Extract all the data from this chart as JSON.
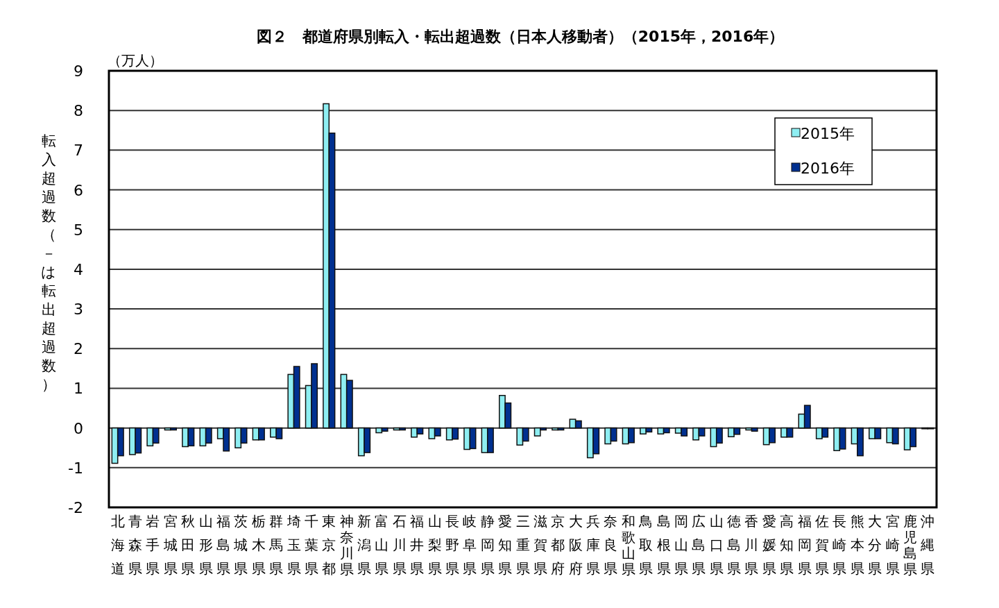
{
  "chart_data": {
    "type": "bar",
    "title": "図２　都道府県別転入・転出超過数（日本人移動者）（2015年，2016年）",
    "ylabel": "転入超過数（－は転出超過数）",
    "annotations": [
      "（万人）"
    ],
    "categories": [
      "北海道",
      "青森県",
      "岩手県",
      "宮城県",
      "秋田県",
      "山形県",
      "福島県",
      "茨城県",
      "栃木県",
      "群馬県",
      "埼玉県",
      "千葉県",
      "東京都",
      "神奈川県",
      "新潟県",
      "富山県",
      "石川県",
      "福井県",
      "山梨県",
      "長野県",
      "岐阜県",
      "静岡県",
      "愛知県",
      "三重県",
      "滋賀県",
      "京都府",
      "大阪府",
      "兵庫県",
      "奈良県",
      "和歌山県",
      "鳥取県",
      "島根県",
      "岡山県",
      "広島県",
      "山口県",
      "徳島県",
      "香川県",
      "愛媛県",
      "高知県",
      "福岡県",
      "佐賀県",
      "長崎県",
      "熊本県",
      "大分県",
      "宮崎県",
      "鹿児島県",
      "沖縄県"
    ],
    "series": [
      {
        "name": "2015年",
        "color": "#8eeef2",
        "values": [
          -0.89,
          -0.67,
          -0.45,
          -0.05,
          -0.47,
          -0.45,
          -0.27,
          -0.5,
          -0.3,
          -0.23,
          1.35,
          1.07,
          8.17,
          1.35,
          -0.7,
          -0.12,
          -0.05,
          -0.23,
          -0.27,
          -0.3,
          -0.54,
          -0.62,
          0.82,
          -0.43,
          -0.2,
          -0.05,
          0.22,
          -0.75,
          -0.4,
          -0.4,
          -0.15,
          -0.15,
          -0.13,
          -0.3,
          -0.47,
          -0.22,
          -0.05,
          -0.42,
          -0.23,
          0.35,
          -0.27,
          -0.57,
          -0.4,
          -0.27,
          -0.37,
          -0.55,
          -0.02
        ]
      },
      {
        "name": "2016年",
        "color": "#003090",
        "values": [
          -0.7,
          -0.63,
          -0.38,
          -0.05,
          -0.45,
          -0.38,
          -0.58,
          -0.38,
          -0.3,
          -0.27,
          1.55,
          1.62,
          7.43,
          1.2,
          -0.62,
          -0.08,
          -0.05,
          -0.15,
          -0.2,
          -0.28,
          -0.52,
          -0.62,
          0.63,
          -0.33,
          -0.05,
          -0.05,
          0.18,
          -0.65,
          -0.33,
          -0.37,
          -0.1,
          -0.12,
          -0.2,
          -0.2,
          -0.38,
          -0.16,
          -0.08,
          -0.37,
          -0.23,
          0.57,
          -0.23,
          -0.53,
          -0.7,
          -0.27,
          -0.4,
          -0.47,
          -0.02
        ]
      }
    ],
    "ylim": [
      -2,
      9
    ],
    "yticks": [
      {
        "value": -2,
        "label": "-2"
      },
      {
        "value": -1,
        "label": "-1"
      },
      0,
      1,
      2,
      3,
      4,
      5,
      6,
      7,
      8,
      9
    ],
    "grid": "y",
    "legend": "top right"
  }
}
